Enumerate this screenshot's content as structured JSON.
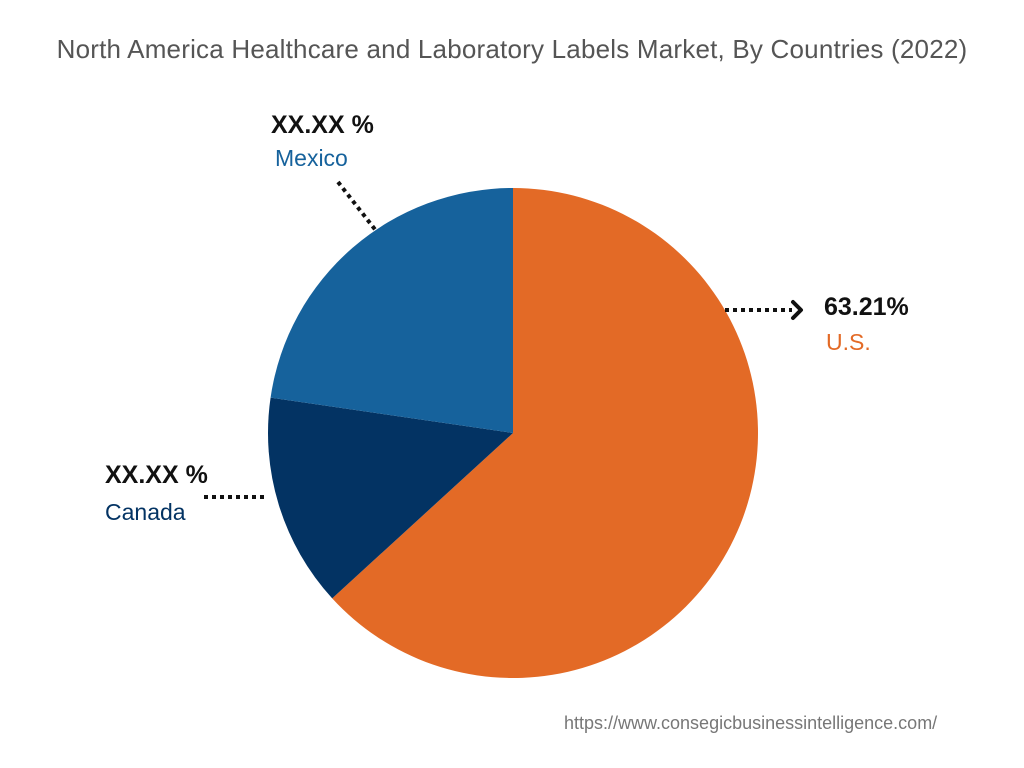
{
  "chart_data": {
    "type": "pie",
    "title": "North America Healthcare and Laboratory Labels Market, By Countries (2022)",
    "slices": [
      {
        "name": "U.S.",
        "value": 63.21,
        "label": "63.21%",
        "color": "#E36A26"
      },
      {
        "name": "Canada",
        "value": 14.1,
        "label": "XX.XX %",
        "color": "#033363"
      },
      {
        "name": "Mexico",
        "value": 22.69,
        "label": "XX.XX %",
        "color": "#16629C"
      }
    ],
    "start": "top",
    "direction": "clockwise"
  },
  "footer": "https://www.consegicbusinessintelligence.com/"
}
